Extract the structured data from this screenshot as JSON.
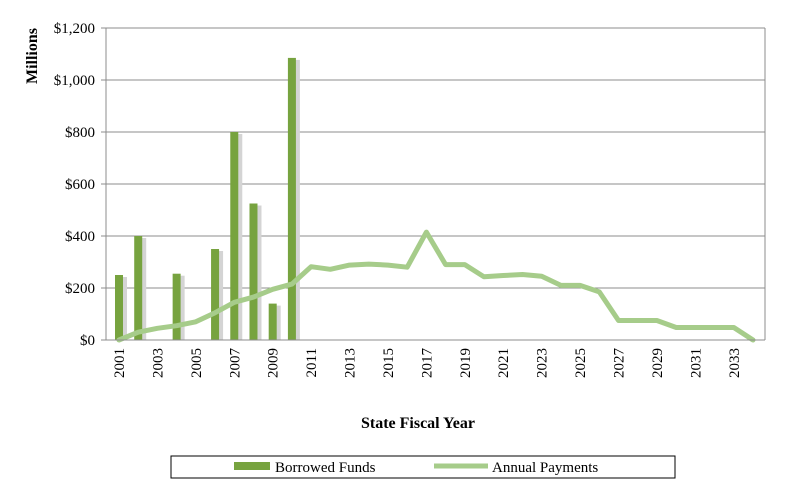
{
  "chart_data": {
    "type": "bar+line",
    "title": "",
    "xlabel": "State Fiscal Year",
    "ylabel": "Millions",
    "ylim": [
      0,
      1200
    ],
    "y_ticks": [
      0,
      200,
      400,
      600,
      800,
      1000,
      1200
    ],
    "y_tick_labels": [
      "$0",
      "$200",
      "$400",
      "$600",
      "$800",
      "$1,000",
      "$1,200"
    ],
    "x_years": [
      2001,
      2002,
      2003,
      2004,
      2005,
      2006,
      2007,
      2008,
      2009,
      2010,
      2011,
      2012,
      2013,
      2014,
      2015,
      2016,
      2017,
      2018,
      2019,
      2020,
      2021,
      2022,
      2023,
      2024,
      2025,
      2026,
      2027,
      2028,
      2029,
      2030,
      2031,
      2032,
      2033,
      2034
    ],
    "x_tick_labels": [
      "2001",
      "2003",
      "2005",
      "2007",
      "2009",
      "2011",
      "2013",
      "2015",
      "2017",
      "2019",
      "2021",
      "2023",
      "2025",
      "2027",
      "2029",
      "2031",
      "2033"
    ],
    "grid": true,
    "legend_position": "bottom",
    "series": [
      {
        "name": "Borrowed Funds",
        "type": "bar",
        "color": "#77a33f",
        "points": [
          {
            "x": 2001,
            "y": 250
          },
          {
            "x": 2002,
            "y": 400
          },
          {
            "x": 2004,
            "y": 255
          },
          {
            "x": 2006,
            "y": 350
          },
          {
            "x": 2007,
            "y": 800
          },
          {
            "x": 2008,
            "y": 525
          },
          {
            "x": 2009,
            "y": 140
          },
          {
            "x": 2010,
            "y": 1085
          }
        ]
      },
      {
        "name": "Annual Payments",
        "type": "line",
        "color": "#a6cc8a",
        "points": [
          {
            "x": 2001,
            "y": 0
          },
          {
            "x": 2002,
            "y": 30
          },
          {
            "x": 2003,
            "y": 45
          },
          {
            "x": 2004,
            "y": 55
          },
          {
            "x": 2005,
            "y": 70
          },
          {
            "x": 2006,
            "y": 105
          },
          {
            "x": 2007,
            "y": 145
          },
          {
            "x": 2008,
            "y": 165
          },
          {
            "x": 2009,
            "y": 195
          },
          {
            "x": 2010,
            "y": 215
          },
          {
            "x": 2011,
            "y": 282
          },
          {
            "x": 2012,
            "y": 272
          },
          {
            "x": 2013,
            "y": 288
          },
          {
            "x": 2014,
            "y": 292
          },
          {
            "x": 2015,
            "y": 288
          },
          {
            "x": 2016,
            "y": 280
          },
          {
            "x": 2017,
            "y": 415
          },
          {
            "x": 2018,
            "y": 290
          },
          {
            "x": 2019,
            "y": 290
          },
          {
            "x": 2020,
            "y": 243
          },
          {
            "x": 2021,
            "y": 248
          },
          {
            "x": 2022,
            "y": 252
          },
          {
            "x": 2023,
            "y": 245
          },
          {
            "x": 2024,
            "y": 210
          },
          {
            "x": 2025,
            "y": 210
          },
          {
            "x": 2026,
            "y": 185
          },
          {
            "x": 2027,
            "y": 75
          },
          {
            "x": 2028,
            "y": 75
          },
          {
            "x": 2029,
            "y": 75
          },
          {
            "x": 2030,
            "y": 48
          },
          {
            "x": 2031,
            "y": 48
          },
          {
            "x": 2032,
            "y": 48
          },
          {
            "x": 2033,
            "y": 48
          },
          {
            "x": 2034,
            "y": 0
          }
        ]
      }
    ]
  }
}
